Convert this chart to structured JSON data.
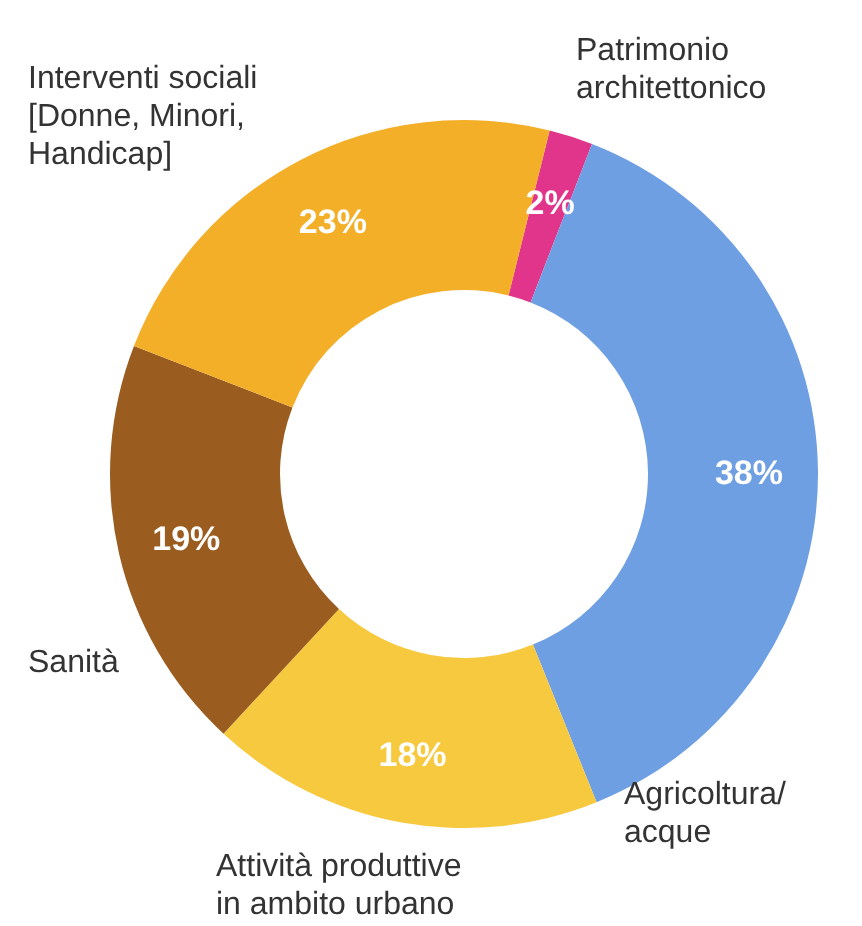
{
  "chart_data": {
    "type": "donut",
    "categories": [
      "Patrimonio\narchitettonico",
      "Agricoltura/\nacque",
      "Attività produttive\nin ambito urbano",
      "Sanità",
      "Interventi sociali\n[Donne, Minori,\nHandicap]"
    ],
    "values": [
      2,
      38,
      18,
      19,
      23
    ],
    "colors": [
      "#e0358a",
      "#6f9fe3",
      "#f7c93e",
      "#9a5c1f",
      "#f3af28"
    ],
    "value_labels": [
      "2%",
      "38%",
      "18%",
      "19%",
      "23%"
    ]
  }
}
